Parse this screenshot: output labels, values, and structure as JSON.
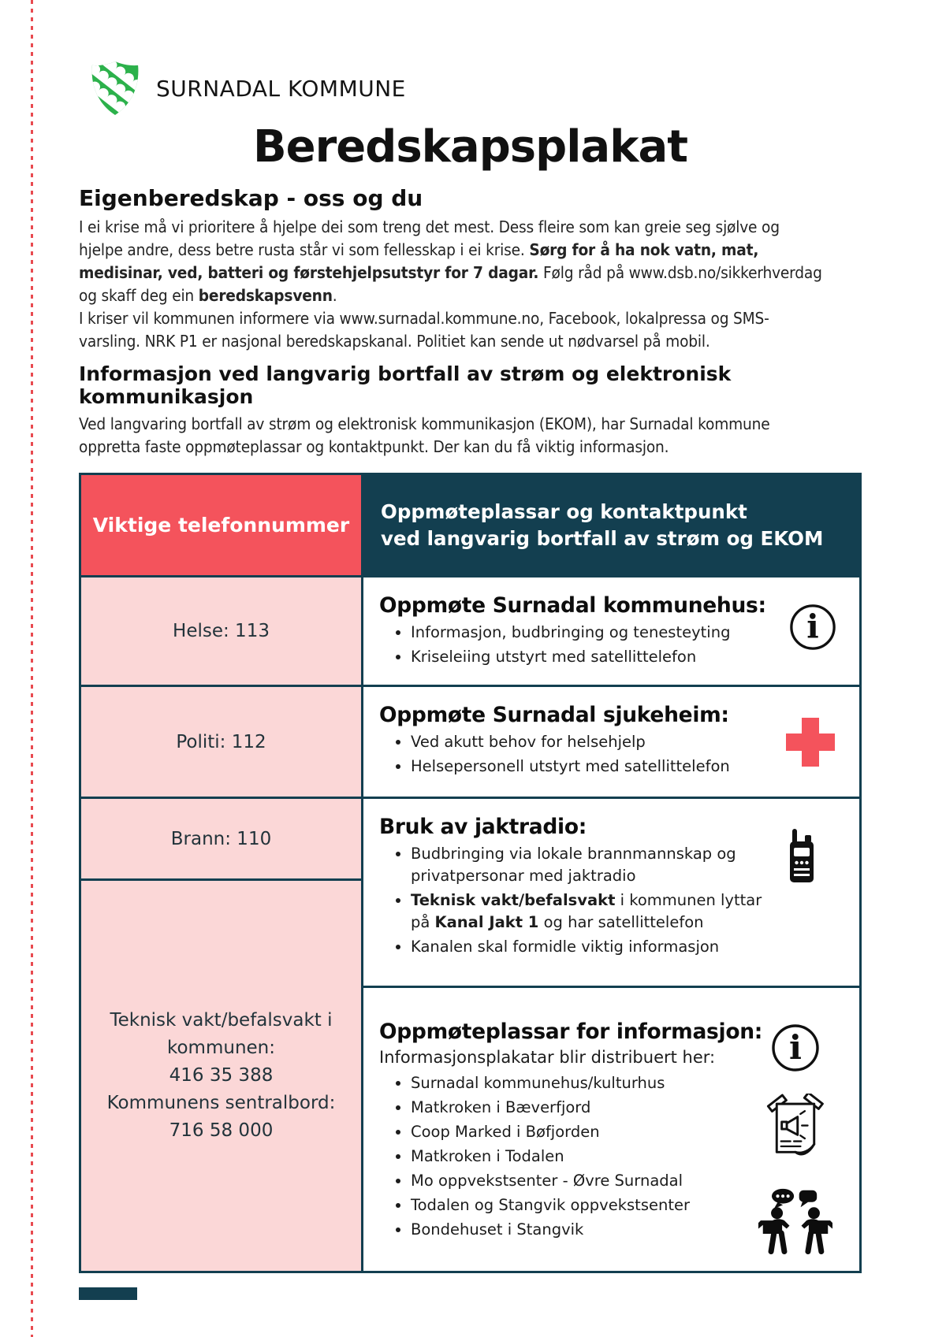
{
  "header": {
    "logo_text": "SURNADAL KOMMUNE",
    "title": "Beredskapsplakat"
  },
  "intro": {
    "heading": "Eigenberedskap - oss og du",
    "p1_normal1": "I ei krise må vi prioritere å hjelpe dei som treng det mest. Dess fleire som kan greie seg sjølve og hjelpe andre, dess betre rusta står vi som fellesskap i ei krise. ",
    "p1_bold1": "Sørg for å ha nok vatn, mat, medisinar, ved, batteri og førstehjelpsutstyr for 7 dagar.",
    "p1_normal2": " Følg råd på www.dsb.no/sikkerhverdag og skaff deg ein ",
    "p1_bold2": "beredskapsvenn",
    "p1_normal3": ".",
    "p2": "I kriser vil kommunen informere via www.surnadal.kommune.no, Facebook, lokalpressa og SMS-varsling. NRK P1 er nasjonal beredskapskanal. Politiet kan sende ut nødvarsel på mobil."
  },
  "info_section": {
    "heading": "Informasjon ved langvarig bortfall av strøm og elektronisk kommunikasjon",
    "para": "Ved langvaring bortfall av strøm og elektronisk kommunikasjon (EKOM), har Surnadal kommune oppretta faste oppmøteplassar og kontaktpunkt. Der kan du få viktig informasjon."
  },
  "table": {
    "left_header": "Viktige telefonnummer",
    "right_header_line1": "Oppmøteplassar og kontaktpunkt",
    "right_header_line2": "ved langvarig bortfall av strøm og EKOM",
    "phones": [
      "Helse: 113",
      "Politi: 112",
      "Brann: 110"
    ],
    "phone4_lines": [
      "Teknisk vakt/befalsvakt i",
      "kommunen:",
      "416 35 388",
      "Kommunens sentralbord:",
      "716 58 000"
    ],
    "row1": {
      "heading": "Oppmøte Surnadal kommunehus:",
      "bullets": [
        "Informasjon, budbringing og tenesteyting",
        "Kriseleiing utstyrt med satellittelefon"
      ],
      "icon": "info-icon"
    },
    "row2": {
      "heading": "Oppmøte Surnadal sjukeheim:",
      "bullets": [
        "Ved akutt behov for helsehjelp",
        "Helsepersonell utstyrt med satellittelefon"
      ],
      "icon": "red-cross-icon"
    },
    "row3": {
      "heading": "Bruk av jaktradio:",
      "bullet1": "Budbringing via lokale brannmannskap og privatpersonar med jaktradio",
      "bullet2_bold1": "Teknisk vakt/befalsvakt",
      "bullet2_text1": " i kommunen lyttar på ",
      "bullet2_bold2": "Kanal Jakt 1",
      "bullet2_text2": " og har satellittelefon",
      "bullet3": "Kanalen skal formidle viktig informasjon",
      "icon": "walkie-talkie-icon"
    },
    "row4": {
      "heading": "Oppmøteplassar for informasjon:",
      "subheading": "Informasjonsplakatar blir distribuert her:",
      "bullets": [
        "Surnadal kommunehus/kulturhus",
        "Matkroken i Bæverfjord",
        "Coop Marked i Bøfjorden",
        "Matkroken i Todalen",
        "Mo oppvekstsenter - Øvre Surnadal",
        "Todalen og Stangvik oppvekstsenter",
        "Bondehuset i Stangvik"
      ],
      "icons": [
        "info-icon",
        "poster-icon",
        "people-talking-icon"
      ]
    }
  },
  "colors": {
    "accent_red": "#f4535c",
    "light_pink": "#fbd7d7",
    "dark_teal": "#133f50",
    "crest_green": "#2cb14b"
  }
}
